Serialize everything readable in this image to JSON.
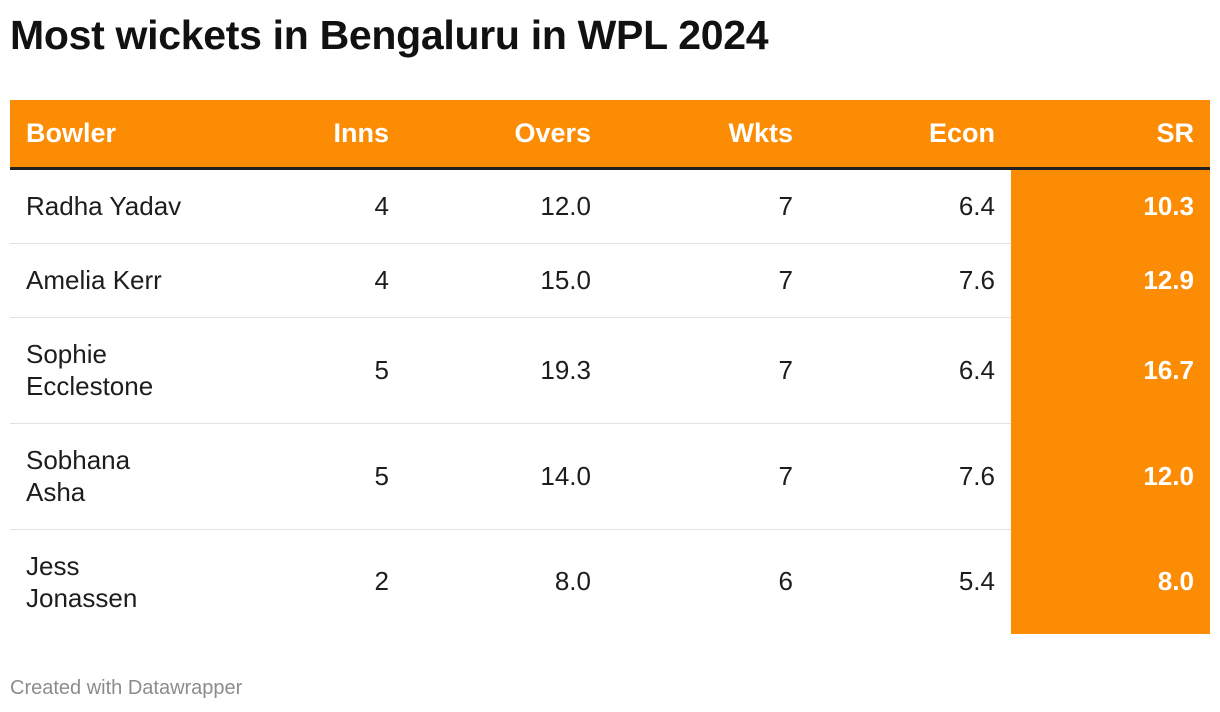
{
  "title": "Most wickets in Bengaluru in WPL 2024",
  "footer": "Created with Datawrapper",
  "colors": {
    "highlight": "#fc8c03",
    "header_text": "#ffffff",
    "body_text": "#1d1d1d",
    "footer_text": "#8c8c8c"
  },
  "chart_data": {
    "type": "table",
    "title": "Most wickets in Bengaluru in WPL 2024",
    "columns": [
      "Bowler",
      "Inns",
      "Overs",
      "Wkts",
      "Econ",
      "SR"
    ],
    "highlighted_column": "SR",
    "rows": [
      {
        "bowler": "Radha Yadav",
        "inns": "4",
        "overs": "12.0",
        "wkts": "7",
        "econ": "6.4",
        "sr": "10.3"
      },
      {
        "bowler": "Amelia Kerr",
        "inns": "4",
        "overs": "15.0",
        "wkts": "7",
        "econ": "7.6",
        "sr": "12.9"
      },
      {
        "bowler": "Sophie Ecclestone",
        "inns": "5",
        "overs": "19.3",
        "wkts": "7",
        "econ": "6.4",
        "sr": "16.7"
      },
      {
        "bowler": "Sobhana Asha",
        "inns": "5",
        "overs": "14.0",
        "wkts": "7",
        "econ": "7.6",
        "sr": "12.0"
      },
      {
        "bowler": "Jess Jonassen",
        "inns": "2",
        "overs": "8.0",
        "wkts": "6",
        "econ": "5.4",
        "sr": "8.0"
      }
    ]
  }
}
